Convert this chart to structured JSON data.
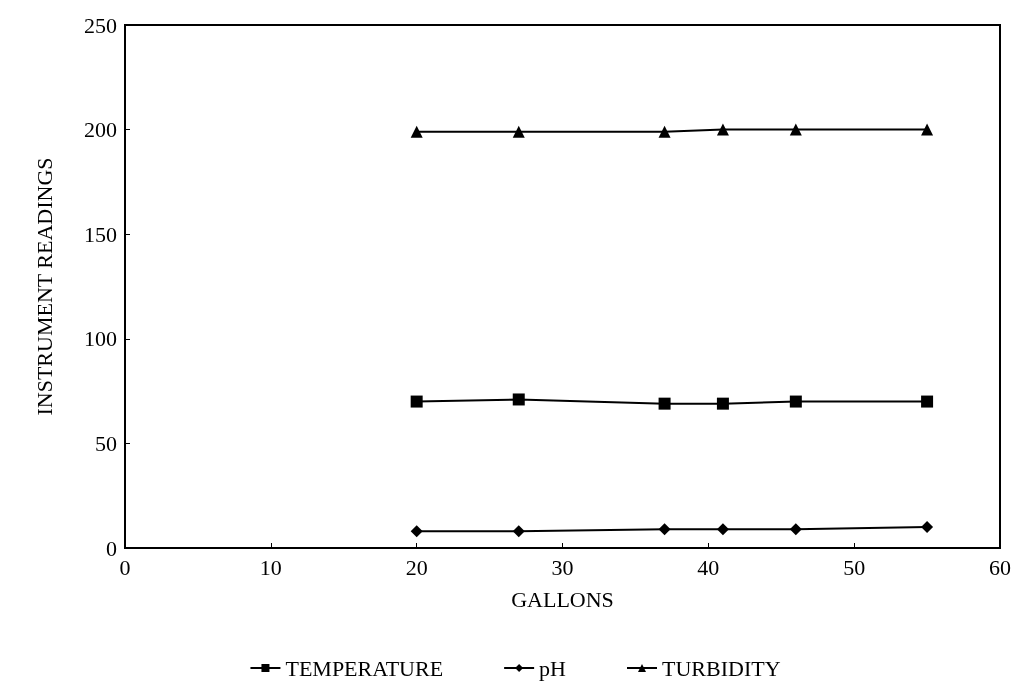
{
  "chart_data": {
    "type": "line",
    "xlabel": "GALLONS",
    "ylabel": "INSTRUMENT READINGS",
    "x": [
      20,
      27,
      37,
      41,
      46,
      55
    ],
    "series": [
      {
        "name": "TEMPERATURE",
        "color": "#000000",
        "marker": "square",
        "values": [
          70,
          71,
          69,
          69,
          70,
          70
        ]
      },
      {
        "name": "pH",
        "color": "#000000",
        "marker": "diamond",
        "values": [
          8,
          8,
          9,
          9,
          9,
          10
        ]
      },
      {
        "name": "TURBIDITY",
        "color": "#000000",
        "marker": "triangle",
        "values": [
          199,
          199,
          199,
          200,
          200,
          200
        ]
      }
    ],
    "xlim": [
      0,
      60
    ],
    "xticks": [
      0,
      10,
      20,
      30,
      40,
      50,
      60
    ],
    "ylim": [
      0,
      250
    ],
    "yticks": [
      0,
      50,
      100,
      150,
      200,
      250
    ],
    "grid": false,
    "legend": "bottom",
    "line_style": "solid"
  }
}
